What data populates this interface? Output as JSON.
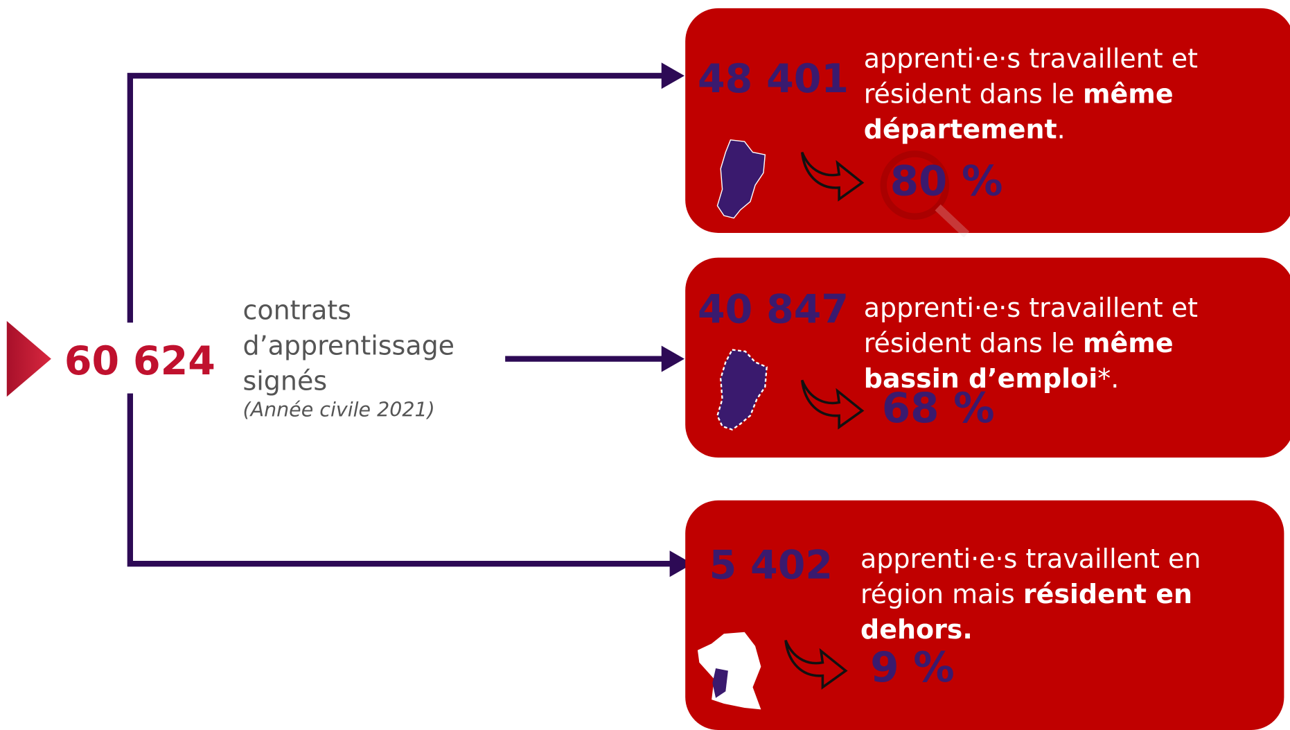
{
  "source": {
    "total": "60 624",
    "label_lines": [
      "contrats",
      "d’apprentissage",
      "signés"
    ],
    "period": "(Année civile 2021)"
  },
  "boxes": [
    {
      "number": "48 401",
      "lines": [
        [
          {
            "text": "apprenti·e·s  travaillent et",
            "bold": false
          }
        ],
        [
          {
            "text": "résident dans le ",
            "bold": false
          },
          {
            "text": "même",
            "bold": true
          }
        ],
        [
          {
            "text": "département",
            "bold": true
          },
          {
            "text": ".",
            "bold": false
          }
        ]
      ],
      "percent": "80 %"
    },
    {
      "number": "40 847",
      "lines": [
        [
          {
            "text": "apprenti·e·s  travaillent et",
            "bold": false
          }
        ],
        [
          {
            "text": "résident dans le ",
            "bold": false
          },
          {
            "text": "même",
            "bold": true
          }
        ],
        [
          {
            "text": "bassin d’emploi",
            "bold": true
          },
          {
            "text": "*.",
            "bold": false
          }
        ]
      ],
      "percent": "68 %"
    },
    {
      "number": "5 402",
      "lines": [
        [
          {
            "text": "apprenti·e·s  travaillent en",
            "bold": false
          }
        ],
        [
          {
            "text": "région mais ",
            "bold": false
          },
          {
            "text": "résident en",
            "bold": true
          }
        ],
        [
          {
            "text": "dehors.",
            "bold": true
          }
        ]
      ],
      "percent": "9 %"
    }
  ]
}
